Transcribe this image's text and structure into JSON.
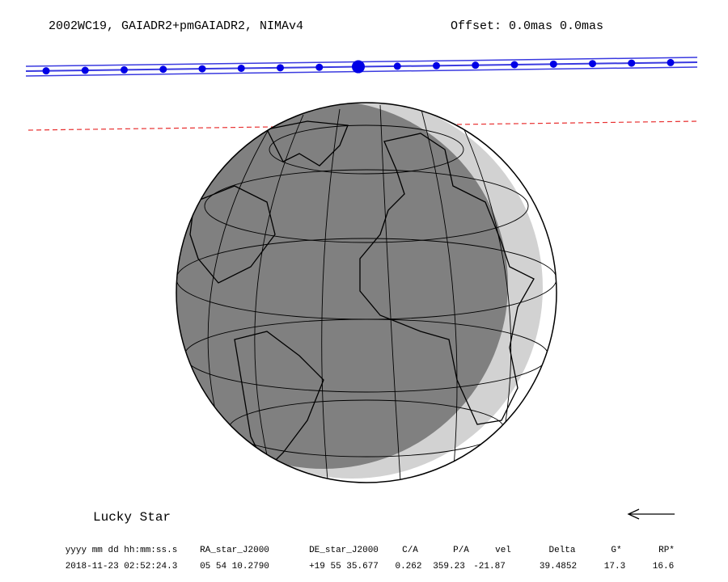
{
  "header": {
    "title": "2002WC19, GAIADR2+pmGAIADR2, NIMAv4",
    "offset": "Offset: 0.0mas 0.0mas"
  },
  "footer": {
    "label": "Lucky Star",
    "table": {
      "columns": [
        "yyyy mm dd hh:mm:ss.s",
        "RA_star_J2000",
        "DE_star_J2000",
        "C/A",
        "P/A",
        "vel",
        "Delta",
        "G*",
        "RP*"
      ],
      "rows": [
        [
          "2018-11-23 02:52:24.3",
          "05 54 10.2790",
          "+19 55 35.677",
          0.262,
          359.23,
          -21.87,
          39.4852,
          17.3,
          16.6
        ]
      ]
    }
  }
}
